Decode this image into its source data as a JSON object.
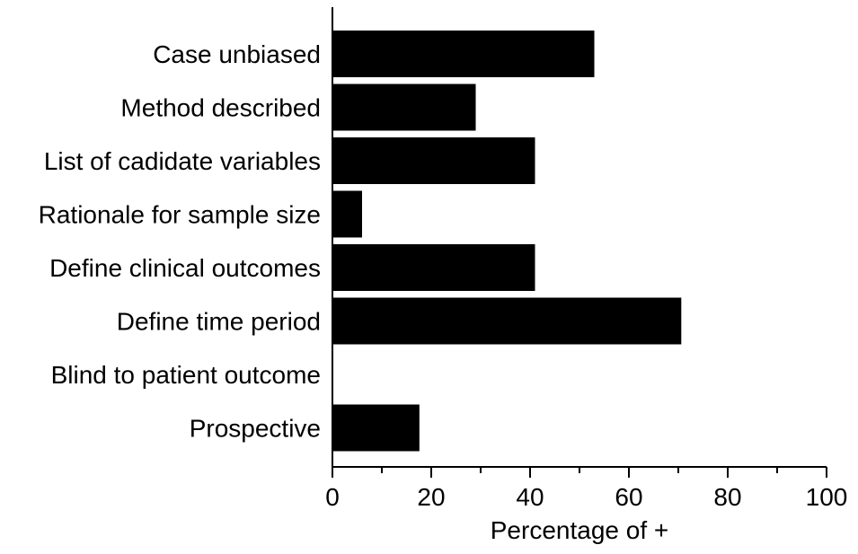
{
  "chart_data": {
    "type": "bar",
    "orientation": "horizontal",
    "categories": [
      "Case unbiased",
      "Method described",
      "List of cadidate variables",
      "Rationale for sample size",
      "Define clinical outcomes",
      "Define time period",
      "Blind to patient outcome",
      "Prospective"
    ],
    "values": [
      53,
      29,
      41,
      6,
      41,
      70.6,
      0,
      17.6
    ],
    "xlabel": "Percentage of +",
    "ylabel": "",
    "xlim": [
      0,
      100
    ],
    "xticks": [
      "0",
      "20",
      "40",
      "60",
      "80",
      "100"
    ],
    "grid": false,
    "bar_color": "#000000"
  }
}
